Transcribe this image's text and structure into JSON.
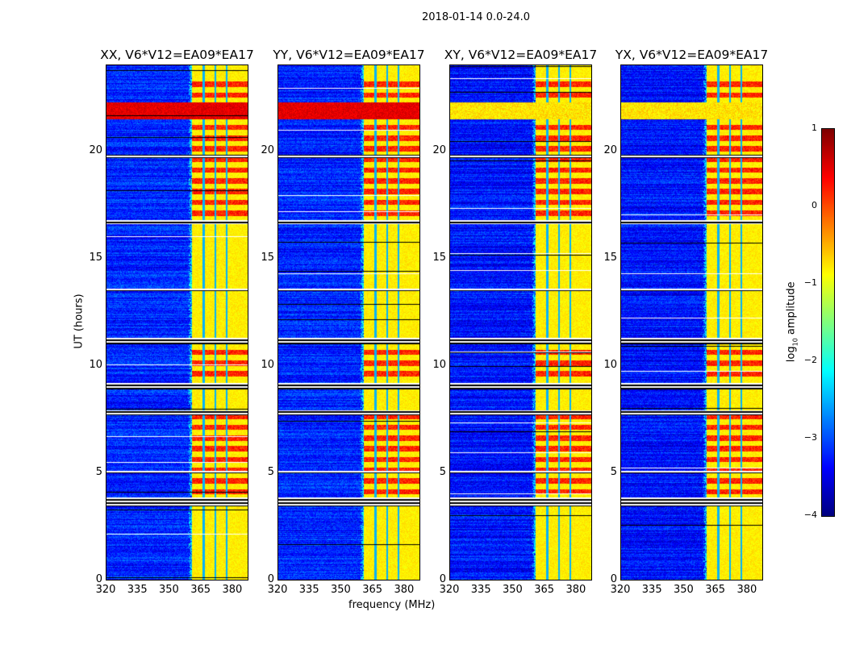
{
  "suptitle": "2018-01-14 0.0-24.0",
  "chart_data": {
    "type": "heatmap",
    "title": "2018-01-14 0.0-24.0",
    "xlabel": "frequency (MHz)",
    "ylabel": "UT (hours)",
    "xlim": [
      320,
      387.7
    ],
    "ylim": [
      0,
      24
    ],
    "xticks": [
      "320",
      "335",
      "350",
      "365",
      "380"
    ],
    "xtick_values": [
      320,
      335,
      350,
      365,
      380
    ],
    "yticks": [
      "0",
      "5",
      "10",
      "15",
      "20"
    ],
    "ytick_values": [
      0,
      5,
      10,
      15,
      20
    ],
    "panels": [
      {
        "title": "XX, V6*V12=EA09*EA17"
      },
      {
        "title": "YY, V6*V12=EA09*EA17"
      },
      {
        "title": "XY, V6*V12=EA09*EA17"
      },
      {
        "title": "YX, V6*V12=EA09*EA17"
      }
    ],
    "colorbar": {
      "label": "log10 amplitude",
      "label_main": "log",
      "label_sub": "10",
      "label_rest": " amplitude",
      "colormap": "jet",
      "range": [
        -4,
        1
      ],
      "ticks": [
        "1",
        "0",
        "−1",
        "−2",
        "−3",
        "−4"
      ],
      "tick_values": [
        1,
        0,
        -1,
        -2,
        -3,
        -4
      ]
    },
    "features": {
      "background_log_amplitude": -3.2,
      "rfi_band_mhz": [
        361,
        387.7
      ],
      "rfi_band_log_amplitude": -0.8,
      "rfi_gap_channels_mhz": [
        366.5,
        372,
        377.5
      ],
      "strong_rfi_hours": [
        [
          4,
          8
        ],
        [
          9.5,
          11
        ],
        [
          17,
          23.5
        ]
      ],
      "flagged_hours": [
        [
          3.45,
          3.85
        ],
        [
          11.0,
          11.3
        ],
        [
          8.9,
          9.2
        ],
        [
          7.7,
          7.9
        ],
        [
          16.6,
          16.8
        ],
        [
          19.7,
          19.85
        ],
        [
          13.5,
          13.6
        ],
        [
          5.0,
          5.1
        ]
      ],
      "broadband_event_hours": [
        21.5,
        22.3
      ]
    }
  }
}
